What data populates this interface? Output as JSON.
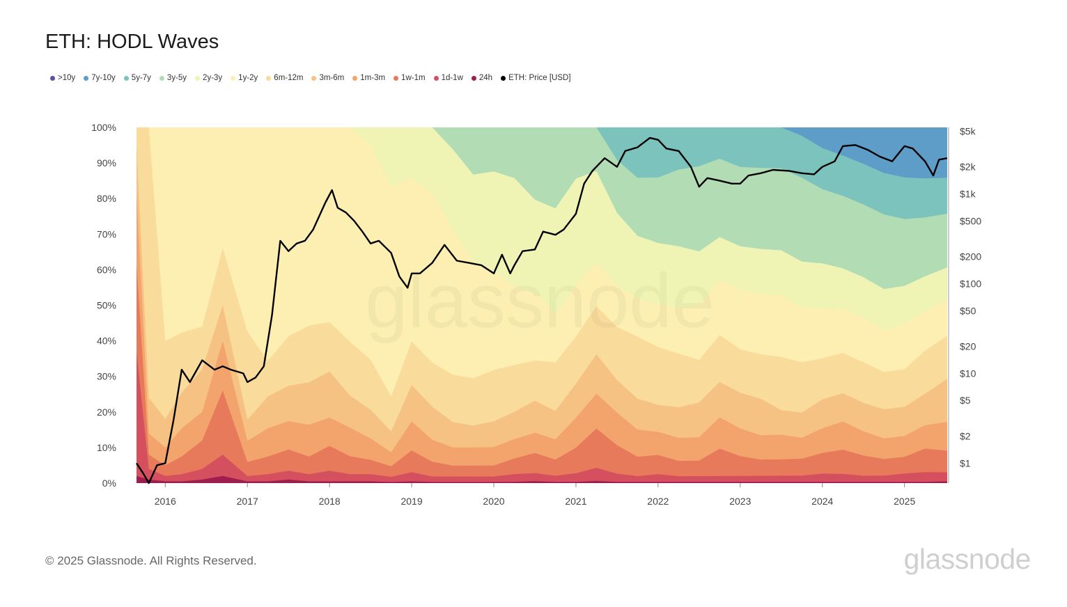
{
  "title": "ETH: HODL Waves",
  "footer": "© 2025 Glassnode. All Rights Reserved.",
  "logo": "glassnode",
  "chart_data": {
    "type": "area",
    "title": "ETH: HODL Waves",
    "stacked": true,
    "legend_position": "top-left",
    "x": [
      2015.65,
      2015.8,
      2016.0,
      2016.2,
      2016.45,
      2016.7,
      2017.0,
      2017.25,
      2017.5,
      2017.75,
      2018.0,
      2018.25,
      2018.5,
      2018.75,
      2019.0,
      2019.25,
      2019.5,
      2019.75,
      2020.0,
      2020.25,
      2020.5,
      2020.75,
      2021.0,
      2021.25,
      2021.5,
      2021.75,
      2022.0,
      2022.25,
      2022.5,
      2022.75,
      2023.0,
      2023.25,
      2023.5,
      2023.75,
      2024.0,
      2024.25,
      2024.5,
      2024.75,
      2025.0,
      2025.25,
      2025.52
    ],
    "x_ticks": [
      "2016",
      "2017",
      "2018",
      "2019",
      "2020",
      "2021",
      "2022",
      "2023",
      "2024",
      "2025"
    ],
    "x_tick_values": [
      2016,
      2017,
      2018,
      2019,
      2020,
      2021,
      2022,
      2023,
      2024,
      2025
    ],
    "y_left": {
      "label": "",
      "range": [
        0,
        100
      ],
      "unit": "%",
      "ticks": [
        "0%",
        "10%",
        "20%",
        "30%",
        "40%",
        "50%",
        "60%",
        "70%",
        "80%",
        "90%",
        "100%"
      ]
    },
    "y_right": {
      "label": "",
      "scale": "log",
      "range": [
        0.6,
        5500
      ],
      "ticks": [
        "$1",
        "$2",
        "$5",
        "$10",
        "$20",
        "$50",
        "$100",
        "$200",
        "$500",
        "$1k",
        "$2k",
        "$5k"
      ],
      "tick_values": [
        1,
        2,
        5,
        10,
        20,
        50,
        100,
        200,
        500,
        1000,
        2000,
        5000
      ]
    },
    "series": [
      {
        "name": "24h",
        "color": "#9e1f4f",
        "values": [
          2,
          1,
          0.5,
          0.5,
          1,
          2,
          0.5,
          0.5,
          1,
          0.5,
          0.5,
          0.5,
          0.5,
          0.3,
          0.5,
          0.3,
          0.3,
          0.3,
          0.3,
          0.3,
          0.5,
          0.3,
          0.3,
          0.5,
          0.3,
          0.3,
          0.3,
          0.3,
          0.3,
          0.3,
          0.3,
          0.3,
          0.3,
          0.3,
          0.3,
          0.3,
          0.3,
          0.3,
          0.3,
          0.3,
          0.5
        ]
      },
      {
        "name": "1d-1w",
        "color": "#d5505e",
        "values": [
          35,
          3,
          1.5,
          2,
          3,
          6,
          1.5,
          2,
          2.5,
          2,
          3,
          2,
          2,
          1.5,
          2.5,
          1.5,
          1.5,
          1.5,
          1.5,
          2,
          2,
          1.5,
          2,
          3,
          2,
          1.5,
          2,
          1.5,
          1.5,
          1.5,
          1.5,
          1.5,
          1.5,
          1.5,
          2,
          2,
          1.5,
          1.5,
          2,
          2.5,
          2.5
        ]
      },
      {
        "name": "1w-1m",
        "color": "#e67a5a",
        "values": [
          25,
          4,
          3,
          5,
          8,
          18,
          4,
          5,
          6,
          5,
          7,
          5,
          4,
          3,
          6,
          4,
          3,
          3,
          3,
          4,
          5,
          4,
          6,
          9,
          7,
          5,
          5,
          4,
          4,
          7,
          5,
          4,
          4,
          4,
          5,
          6,
          5,
          4,
          4,
          6,
          6
        ]
      },
      {
        "name": "1m-3m",
        "color": "#f3a46c",
        "values": [
          20,
          6,
          5,
          8,
          8,
          14,
          6,
          8,
          8,
          9,
          8,
          8,
          6,
          4,
          8,
          6,
          5,
          5,
          5,
          5,
          5,
          5,
          7,
          8,
          8,
          7,
          6,
          6,
          6,
          8,
          7,
          6,
          6,
          5,
          6,
          7,
          6,
          5,
          5,
          6,
          8
        ]
      },
      {
        "name": "3m-6m",
        "color": "#f6c283",
        "values": [
          13,
          10,
          8,
          10,
          12,
          10,
          6,
          9,
          10,
          12,
          13,
          9,
          8,
          6,
          10,
          9,
          7,
          6,
          7,
          7,
          8,
          7,
          8,
          9,
          8,
          8,
          7,
          8,
          9,
          9,
          9,
          9,
          6,
          6,
          7,
          7,
          7,
          7,
          7,
          8,
          12
        ]
      },
      {
        "name": "6m-12m",
        "color": "#f9db9c",
        "values": [
          5,
          76,
          22,
          17,
          12,
          16,
          25,
          10,
          14,
          16,
          14,
          15,
          14,
          10,
          12,
          12,
          13,
          13,
          14,
          12,
          10,
          12,
          11,
          11,
          13,
          16,
          15,
          14,
          11,
          12,
          11,
          11,
          13,
          12,
          10,
          10,
          10,
          9,
          9,
          11,
          12
        ]
      },
      {
        "name": "1y-2y",
        "color": "#fcefb1",
        "values": [
          0,
          0,
          60,
          58,
          56,
          34,
          58,
          66,
          59,
          56,
          55,
          60,
          60,
          60,
          45,
          46,
          40,
          32,
          27,
          20,
          17,
          12,
          12,
          10,
          10,
          10,
          11,
          12,
          14,
          14,
          15,
          15,
          15,
          13,
          12,
          11,
          11,
          10,
          11,
          10,
          10
        ]
      },
      {
        "name": "2y-3y",
        "color": "#eff4b5",
        "values": [
          0,
          0,
          0,
          0,
          0,
          0,
          0,
          0,
          0,
          0,
          0,
          0,
          5,
          17,
          14,
          18,
          22,
          24,
          27,
          28,
          23,
          26,
          25,
          21,
          18,
          16,
          16,
          16,
          14,
          11,
          11,
          11,
          11,
          11,
          11,
          10,
          10,
          10,
          9,
          9,
          9
        ]
      },
      {
        "name": "3y-5y",
        "color": "#b1dcb4",
        "values": [
          0,
          0,
          0,
          0,
          0,
          0,
          0,
          0,
          0,
          0,
          0,
          0,
          0,
          0,
          0,
          0,
          6,
          13,
          12,
          13,
          18,
          20,
          12,
          10,
          13,
          15,
          17,
          20,
          22,
          20,
          20,
          20,
          20,
          20,
          18,
          18,
          18,
          18,
          16,
          15,
          15
        ]
      },
      {
        "name": "5y-7y",
        "color": "#7cc3bd",
        "values": [
          0,
          0,
          0,
          0,
          0,
          0,
          0,
          0,
          0,
          0,
          0,
          0,
          0,
          0,
          0,
          0,
          0,
          0,
          0,
          0,
          0,
          0,
          0,
          0,
          8,
          13,
          13,
          11,
          10,
          8,
          10,
          10,
          10,
          10,
          10,
          10,
          10,
          10,
          10,
          10,
          10
        ]
      },
      {
        "name": "7y-10y",
        "color": "#5d9dc8",
        "values": [
          0,
          0,
          0,
          0,
          0,
          0,
          0,
          0,
          0,
          0,
          0,
          0,
          0,
          0,
          0,
          0,
          0,
          0,
          0,
          0,
          0,
          0,
          0,
          0,
          0,
          0,
          0,
          0,
          0,
          0,
          0,
          0,
          0,
          2,
          5,
          7,
          9,
          11,
          12,
          13,
          14
        ]
      },
      {
        "name": ">10y",
        "color": "#5e4fa2",
        "values": [
          0,
          0,
          0,
          0,
          0,
          0,
          0,
          0,
          0,
          0,
          0,
          0,
          0,
          0,
          0,
          0,
          0,
          0,
          0,
          0,
          0,
          0,
          0,
          0,
          0,
          0,
          0,
          0,
          0,
          0,
          0,
          0,
          0,
          0,
          0,
          0,
          0,
          0,
          0,
          0,
          0
        ]
      }
    ],
    "price": {
      "name": "ETH: Price [USD]",
      "color": "#000000",
      "x": [
        2015.65,
        2015.72,
        2015.8,
        2015.9,
        2016.0,
        2016.1,
        2016.2,
        2016.3,
        2016.45,
        2016.6,
        2016.7,
        2016.8,
        2016.95,
        2017.0,
        2017.1,
        2017.2,
        2017.3,
        2017.4,
        2017.5,
        2017.6,
        2017.7,
        2017.8,
        2017.95,
        2018.03,
        2018.1,
        2018.2,
        2018.3,
        2018.4,
        2018.5,
        2018.6,
        2018.75,
        2018.85,
        2018.95,
        2019.0,
        2019.1,
        2019.25,
        2019.4,
        2019.55,
        2019.7,
        2019.85,
        2020.0,
        2020.1,
        2020.2,
        2020.25,
        2020.35,
        2020.5,
        2020.6,
        2020.75,
        2020.85,
        2021.0,
        2021.1,
        2021.2,
        2021.35,
        2021.5,
        2021.6,
        2021.75,
        2021.9,
        2022.0,
        2022.1,
        2022.25,
        2022.4,
        2022.5,
        2022.6,
        2022.75,
        2022.9,
        2023.0,
        2023.1,
        2023.25,
        2023.4,
        2023.6,
        2023.75,
        2023.9,
        2024.0,
        2024.15,
        2024.25,
        2024.4,
        2024.55,
        2024.7,
        2024.85,
        2025.0,
        2025.1,
        2025.25,
        2025.35,
        2025.42,
        2025.52
      ],
      "values": [
        1,
        0.8,
        0.6,
        0.95,
        1.0,
        3,
        11,
        8,
        14,
        11,
        12,
        11,
        10,
        8,
        9,
        12,
        45,
        300,
        230,
        280,
        300,
        400,
        800,
        1100,
        700,
        620,
        500,
        380,
        280,
        300,
        220,
        120,
        90,
        130,
        130,
        170,
        270,
        180,
        170,
        160,
        130,
        210,
        130,
        160,
        230,
        240,
        380,
        350,
        400,
        600,
        1300,
        1800,
        2500,
        2000,
        3000,
        3300,
        4200,
        4000,
        3200,
        3000,
        2000,
        1200,
        1500,
        1400,
        1300,
        1300,
        1600,
        1700,
        1850,
        1800,
        1700,
        1650,
        2000,
        2300,
        3400,
        3500,
        3100,
        2600,
        2300,
        3400,
        3200,
        2300,
        1600,
        2400,
        2500
      ]
    }
  }
}
